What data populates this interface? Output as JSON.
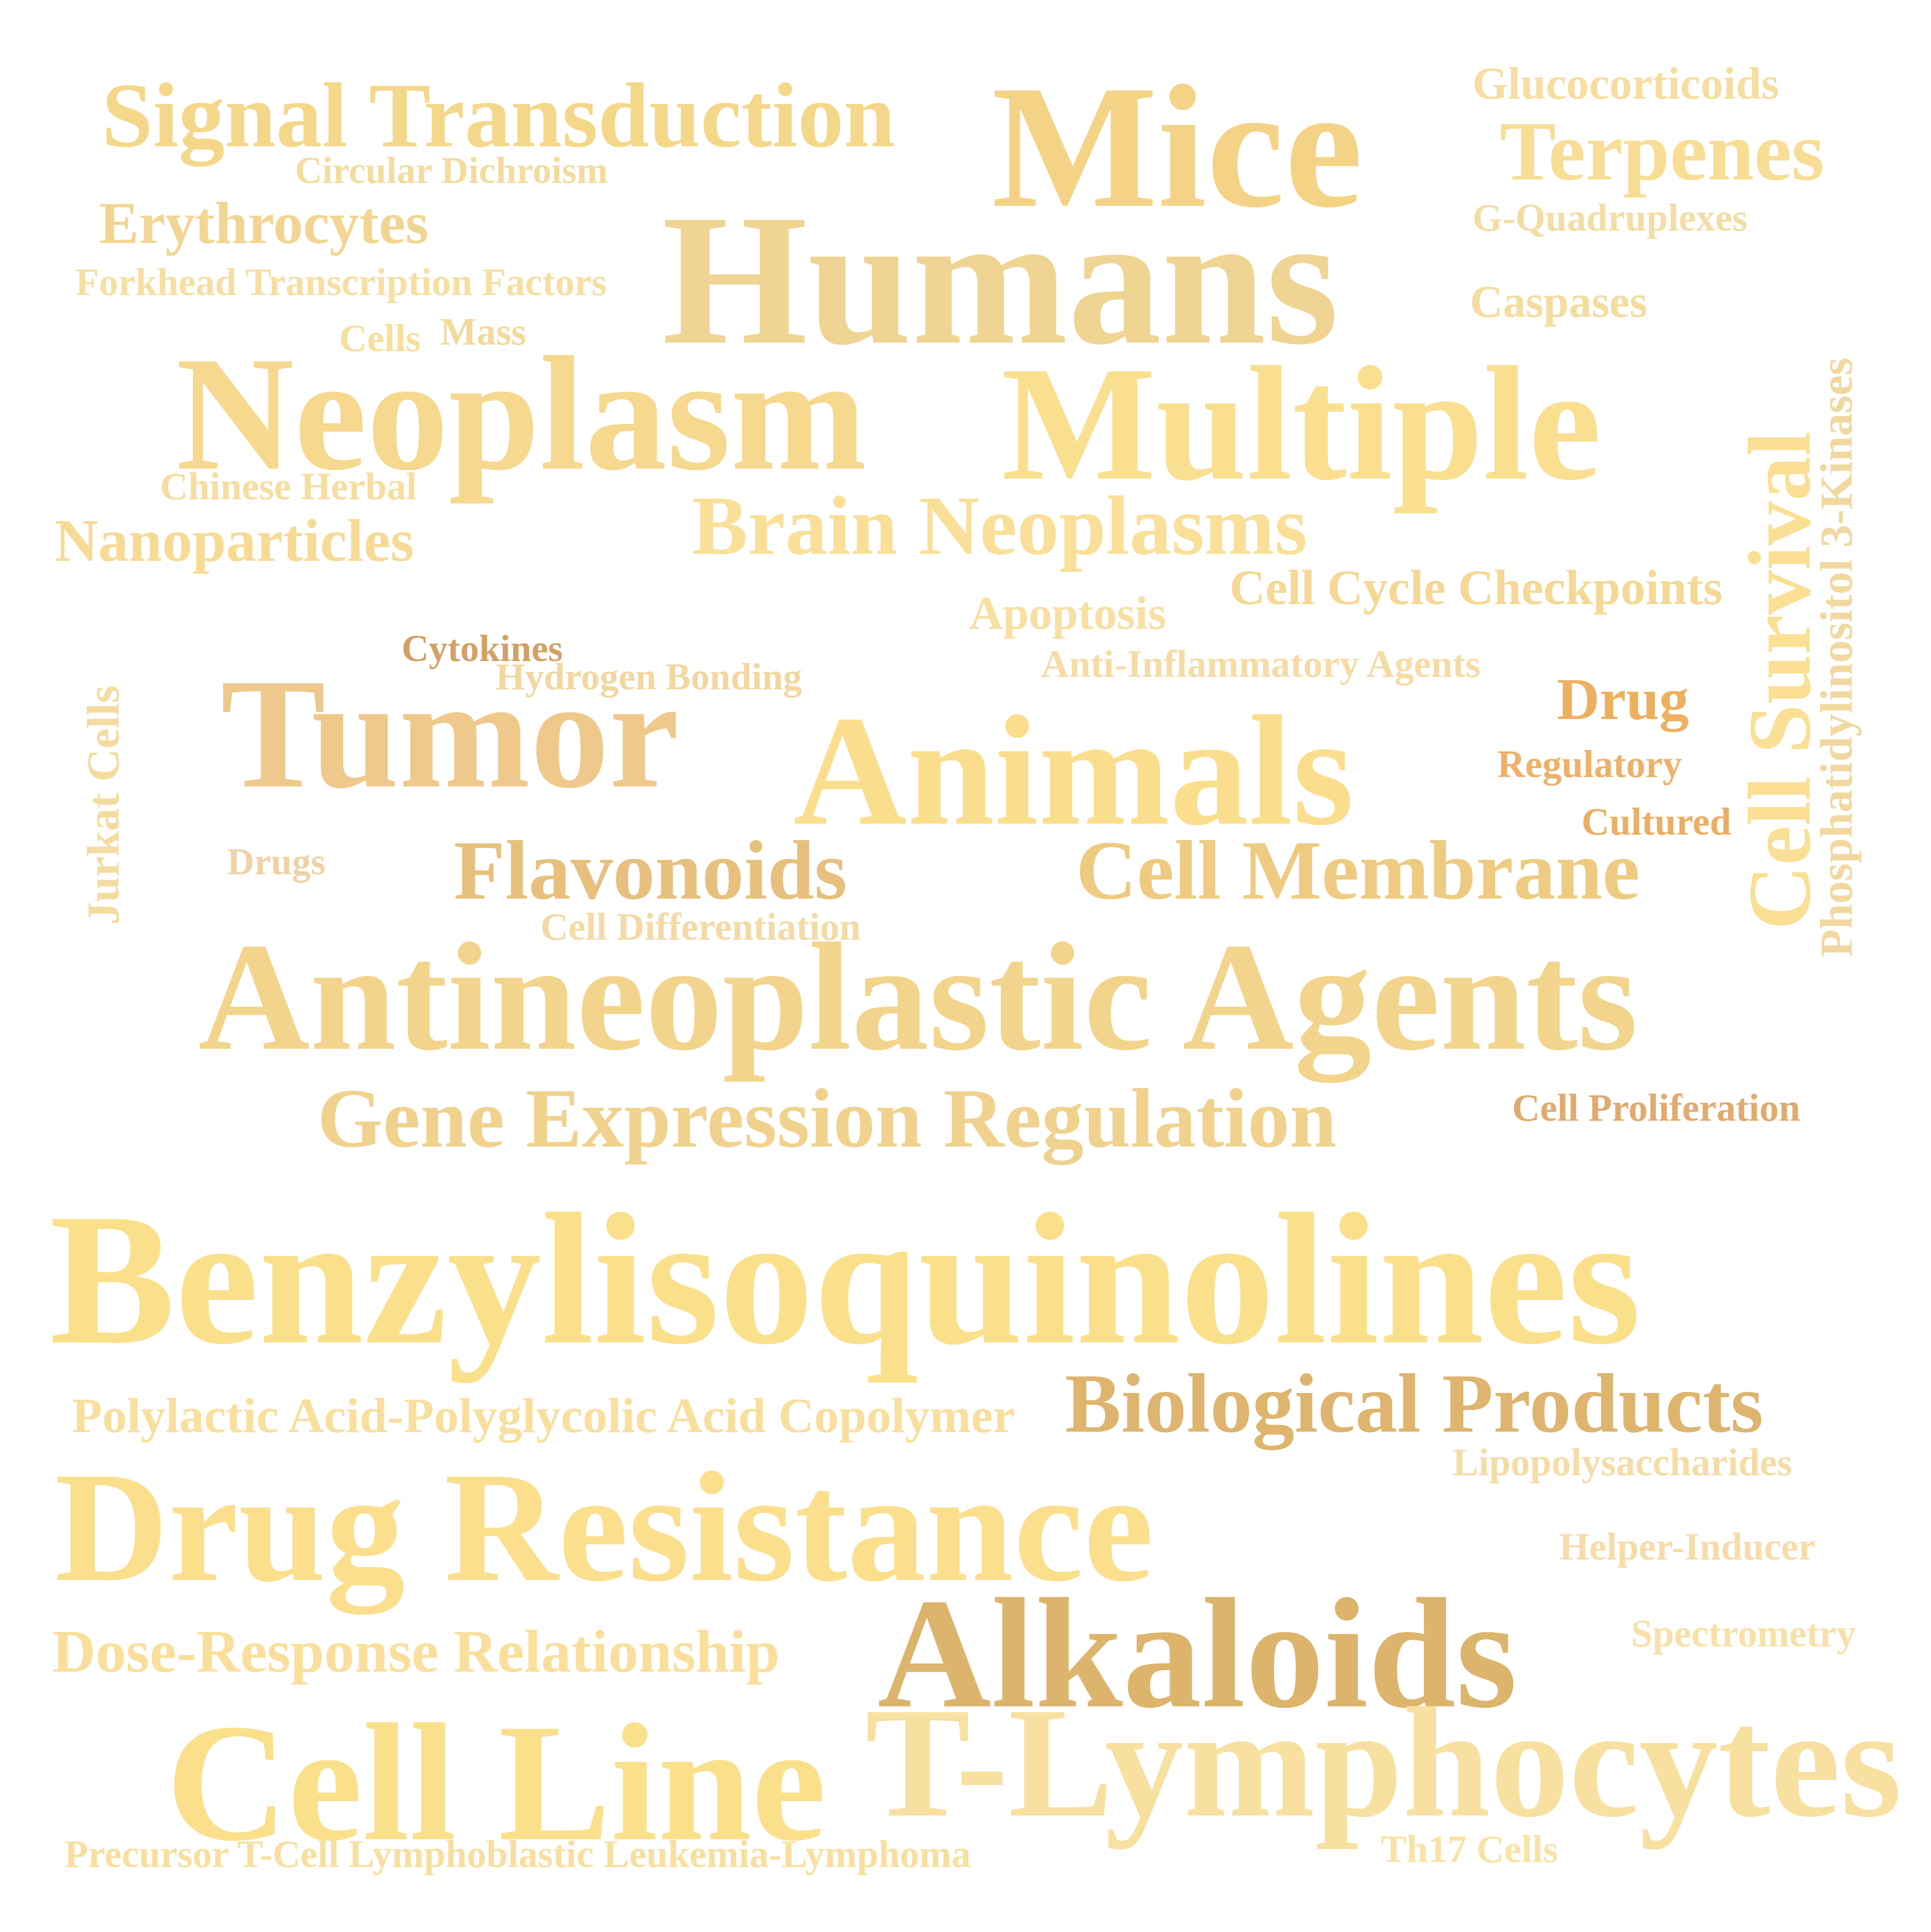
{
  "words": [
    {
      "text": "Signal Transduction",
      "color": "#f5d78a"
    },
    {
      "text": "Circular Dichroism",
      "color": "#f3dc9e"
    },
    {
      "text": "Erythrocytes",
      "color": "#f2d592"
    },
    {
      "text": "Forkhead Transcription Factors",
      "color": "#f6dfa0"
    },
    {
      "text": "Cells",
      "color": "#f7df9c"
    },
    {
      "text": "Mass",
      "color": "#f2da9c"
    },
    {
      "text": "Mice",
      "color": "#f5d386"
    },
    {
      "text": "Humans",
      "color": "#f0d493"
    },
    {
      "text": "Glucocorticoids",
      "color": "#f6dea0"
    },
    {
      "text": "Terpenes",
      "color": "#f8dd94"
    },
    {
      "text": "G-Quadruplexes",
      "color": "#f3dda5"
    },
    {
      "text": "Caspases",
      "color": "#f5dc9f"
    },
    {
      "text": "Neoplasm",
      "color": "#f6d88e"
    },
    {
      "text": "Multiple",
      "color": "#f9df8f"
    },
    {
      "text": "Chinese Herbal",
      "color": "#f8dda0"
    },
    {
      "text": "Nanoparticles",
      "color": "#f7db95"
    },
    {
      "text": "Brain Neoplasms",
      "color": "#fadf98"
    },
    {
      "text": "Cell Cycle Checkpoints",
      "color": "#f5d893"
    },
    {
      "text": "Apoptosis",
      "color": "#f8dfa2"
    },
    {
      "text": "Cytokines",
      "color": "#d4a066"
    },
    {
      "text": "Hydrogen Bonding",
      "color": "#f3d7a0"
    },
    {
      "text": "Anti-Inflammatory Agents",
      "color": "#f6dca4"
    },
    {
      "text": "Drug",
      "color": "#edb060"
    },
    {
      "text": "Regulatory",
      "color": "#eeb16a"
    },
    {
      "text": "Cultured",
      "color": "#ecae64"
    },
    {
      "text": "Jurkat Cells",
      "color": "#f4dba0"
    },
    {
      "text": "Tumor",
      "color": "#efc98c"
    },
    {
      "text": "Animals",
      "color": "#fbde8d"
    },
    {
      "text": "Drugs",
      "color": "#efd2a6"
    },
    {
      "text": "Flavonoids",
      "color": "#e7c07e"
    },
    {
      "text": "Cell Membrane",
      "color": "#eecb80"
    },
    {
      "text": "Cell Differentiation",
      "color": "#f3daa6"
    },
    {
      "text": "Cell Survival",
      "color": "#fadf94"
    },
    {
      "text": "Phosphatidylinositol 3-Kinases",
      "color": "#f1d8a0"
    },
    {
      "text": "Antineoplastic Agents",
      "color": "#f3d48c"
    },
    {
      "text": "Gene Expression Regulation",
      "color": "#f0d28e"
    },
    {
      "text": "Cell Proliferation",
      "color": "#e1aa6e"
    },
    {
      "text": "Benzylisoquinolines",
      "color": "#fbe08b"
    },
    {
      "text": "Polylactic Acid-Polyglycolic Acid Copolymer",
      "color": "#f8df9c"
    },
    {
      "text": "Biological Products",
      "color": "#deb46e"
    },
    {
      "text": "Lipopolysaccharides",
      "color": "#f5dca7"
    },
    {
      "text": "Drug Resistance",
      "color": "#fbdf8d"
    },
    {
      "text": "Helper-Inducer",
      "color": "#f7dca8"
    },
    {
      "text": "Alkaloids",
      "color": "#ddb46c"
    },
    {
      "text": "Spectrometry",
      "color": "#f8e0a7"
    },
    {
      "text": "Dose-Response Relationship",
      "color": "#fadf9c"
    },
    {
      "text": "Cell Line",
      "color": "#fbe08c"
    },
    {
      "text": "T-Lymphocytes",
      "color": "#f7e0a0"
    },
    {
      "text": "Precursor T-Cell Lymphoblastic Leukemia-Lymphoma",
      "color": "#f8dfa0"
    },
    {
      "text": "Th17 Cells",
      "color": "#fae2a6"
    }
  ]
}
